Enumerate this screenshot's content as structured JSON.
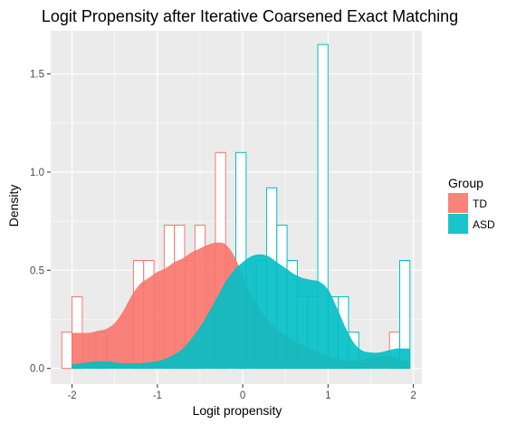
{
  "chart_data": {
    "type": "histogram+density",
    "title": "Logit Propensity after Iterative Coarsened Exact Matching",
    "xlabel": "Logit propensity",
    "ylabel": "Density",
    "xlim": [
      -2.25,
      2.1
    ],
    "ylim": [
      -0.08,
      1.72
    ],
    "x_ticks": [
      -2,
      -1,
      0,
      1,
      2
    ],
    "x_tick_labels": [
      "-2",
      "-1",
      "0",
      "1",
      "2"
    ],
    "y_ticks": [
      0.0,
      0.5,
      1.0,
      1.5
    ],
    "y_tick_labels": [
      "0.0",
      "0.5",
      "1.0",
      "1.5"
    ],
    "grid": true,
    "legend": {
      "title": "Group",
      "placement": "right",
      "items": [
        {
          "label": "TD",
          "color": "#F8766D"
        },
        {
          "label": "ASD",
          "color": "#00BFC4"
        }
      ]
    },
    "bin_width": 0.12,
    "histogram_td": [
      {
        "x0": -2.12,
        "x1": -2.0,
        "y": 0.185
      },
      {
        "x0": -2.0,
        "x1": -1.88,
        "y": 0.365
      },
      {
        "x0": -1.28,
        "x1": -1.16,
        "y": 0.55
      },
      {
        "x0": -1.16,
        "x1": -1.04,
        "y": 0.55
      },
      {
        "x0": -0.92,
        "x1": -0.8,
        "y": 0.73
      },
      {
        "x0": -0.8,
        "x1": -0.68,
        "y": 0.73
      },
      {
        "x0": -0.68,
        "x1": -0.56,
        "y": 0.55
      },
      {
        "x0": -0.56,
        "x1": -0.44,
        "y": 0.73
      },
      {
        "x0": -0.32,
        "x1": -0.2,
        "y": 1.1
      },
      {
        "x0": 1.72,
        "x1": 1.84,
        "y": 0.185
      }
    ],
    "histogram_asd": [
      {
        "x0": -2.12,
        "x1": -2.0,
        "y": 0.0
      },
      {
        "x0": -1.72,
        "x1": -1.6,
        "y": 0.185
      },
      {
        "x0": -0.08,
        "x1": 0.04,
        "y": 1.1
      },
      {
        "x0": 0.04,
        "x1": 0.16,
        "y": 0.0
      },
      {
        "x0": 0.16,
        "x1": 0.28,
        "y": 0.55
      },
      {
        "x0": 0.28,
        "x1": 0.4,
        "y": 0.92
      },
      {
        "x0": 0.4,
        "x1": 0.52,
        "y": 0.73
      },
      {
        "x0": 0.52,
        "x1": 0.64,
        "y": 0.55
      },
      {
        "x0": 0.64,
        "x1": 0.76,
        "y": 0.365
      },
      {
        "x0": 0.76,
        "x1": 0.88,
        "y": 0.365
      },
      {
        "x0": 0.88,
        "x1": 1.0,
        "y": 1.65
      },
      {
        "x0": 1.0,
        "x1": 1.12,
        "y": 0.365
      },
      {
        "x0": 1.12,
        "x1": 1.24,
        "y": 0.365
      },
      {
        "x0": 1.24,
        "x1": 1.36,
        "y": 0.185
      },
      {
        "x0": 1.84,
        "x1": 1.96,
        "y": 0.55
      }
    ],
    "density_td": {
      "x": [
        -2.0,
        -1.9,
        -1.8,
        -1.7,
        -1.6,
        -1.5,
        -1.4,
        -1.3,
        -1.2,
        -1.1,
        -1.0,
        -0.9,
        -0.8,
        -0.7,
        -0.6,
        -0.5,
        -0.4,
        -0.3,
        -0.2,
        -0.1,
        0.0,
        0.1,
        0.2,
        0.3,
        0.4,
        0.5,
        0.6,
        0.7,
        0.8,
        0.9,
        1.0,
        1.1,
        1.2,
        1.3,
        1.4,
        1.5,
        1.6,
        1.7,
        1.8,
        1.9,
        1.96
      ],
      "y": [
        0.18,
        0.18,
        0.18,
        0.19,
        0.2,
        0.23,
        0.29,
        0.37,
        0.43,
        0.46,
        0.49,
        0.51,
        0.54,
        0.56,
        0.59,
        0.61,
        0.63,
        0.64,
        0.63,
        0.57,
        0.47,
        0.37,
        0.3,
        0.24,
        0.2,
        0.17,
        0.14,
        0.12,
        0.1,
        0.08,
        0.06,
        0.05,
        0.04,
        0.04,
        0.04,
        0.05,
        0.06,
        0.06,
        0.05,
        0.04,
        0.03
      ]
    },
    "density_asd": {
      "x": [
        -2.0,
        -1.9,
        -1.8,
        -1.7,
        -1.6,
        -1.5,
        -1.4,
        -1.3,
        -1.2,
        -1.1,
        -1.0,
        -0.9,
        -0.8,
        -0.7,
        -0.6,
        -0.5,
        -0.4,
        -0.3,
        -0.2,
        -0.1,
        0.0,
        0.1,
        0.2,
        0.3,
        0.4,
        0.5,
        0.6,
        0.7,
        0.8,
        0.9,
        1.0,
        1.1,
        1.2,
        1.3,
        1.4,
        1.5,
        1.6,
        1.7,
        1.8,
        1.9,
        1.96
      ],
      "y": [
        0.02,
        0.025,
        0.03,
        0.035,
        0.035,
        0.03,
        0.025,
        0.025,
        0.025,
        0.03,
        0.035,
        0.05,
        0.07,
        0.1,
        0.15,
        0.21,
        0.28,
        0.36,
        0.44,
        0.5,
        0.54,
        0.57,
        0.58,
        0.57,
        0.54,
        0.51,
        0.48,
        0.46,
        0.45,
        0.44,
        0.4,
        0.31,
        0.21,
        0.13,
        0.09,
        0.08,
        0.08,
        0.09,
        0.1,
        0.1,
        0.1
      ]
    }
  }
}
